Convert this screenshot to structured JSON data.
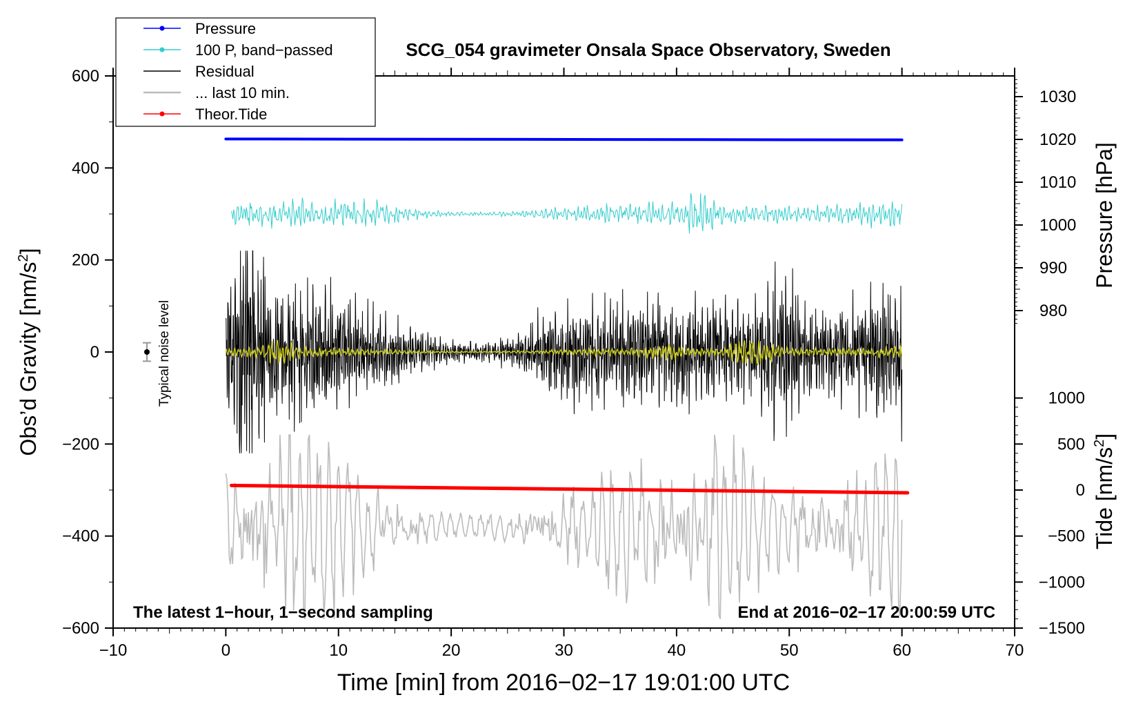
{
  "chart_data": {
    "type": "line",
    "title": "SCG_054 gravimeter Onsala Space Observatory, Sweden",
    "xlabel": "Time [min] from 2016−02−17 19:01:00 UTC",
    "ylabel_main": "Obs’d Gravity [nm/s",
    "ylabel_sup": "2",
    "ylabel_close": "]",
    "ylabel_pressure": "Pressure [hPa]",
    "ylabel_tide": "Tide [nm/s",
    "ylabel_tide_sup": "2",
    "ylabel_tide_close": "]",
    "xlim": [
      -10,
      70
    ],
    "ylim": [
      -600,
      600
    ],
    "x_ticks": [
      "−10",
      "0",
      "10",
      "20",
      "30",
      "40",
      "50",
      "60",
      "70"
    ],
    "x_tick_values": [
      -10,
      0,
      10,
      20,
      30,
      40,
      50,
      60,
      70
    ],
    "y_ticks": [
      "600",
      "400",
      "200",
      "0",
      "−200",
      "−400",
      "−600"
    ],
    "y_tick_values": [
      600,
      400,
      200,
      0,
      -200,
      -400,
      -600
    ],
    "pressure_ticks": [
      "1030",
      "1020",
      "1010",
      "1000",
      "990",
      "980"
    ],
    "pressure_tick_values": [
      1030,
      1020,
      1010,
      1000,
      990,
      980
    ],
    "pressure_mapping": {
      "value_1020": 1020,
      "gravity_at_1020": 462,
      "gravity_per_hpa": 9.3
    },
    "tide_ticks": [
      "1000",
      "500",
      "0",
      "−500",
      "−1000",
      "−1500"
    ],
    "tide_tick_values": [
      1000,
      500,
      0,
      -500,
      -1000,
      -1500
    ],
    "tide_mapping": {
      "value_0": 0,
      "gravity_at_0": -300,
      "gravity_per_unit": 0.2
    },
    "legend": [
      {
        "label": "Pressure",
        "color": "#0000ff",
        "marker": true
      },
      {
        "label": "100 P, band−passed",
        "color": "#33cccc",
        "marker": true
      },
      {
        "label": "Residual",
        "color": "#000000",
        "marker": false
      },
      {
        "label": "... last 10 min.",
        "color": "#bbbbbb",
        "marker": false
      },
      {
        "label": "Theor.Tide",
        "color": "#ff0000",
        "marker": true
      }
    ],
    "annotations": {
      "bottom_left": "The latest 1−hour, 1−second sampling",
      "bottom_right": "End at 2016−02−17 20:00:59 UTC",
      "noise_label": "Typical noise level"
    },
    "noise_bar": {
      "x": -7,
      "y": 0,
      "error": 20
    },
    "series": [
      {
        "name": "Pressure",
        "color": "#0000ff",
        "x_start": 0,
        "x_end": 60,
        "y_start": 463,
        "y_end": 461
      },
      {
        "name": "100 P, band−passed",
        "color": "#33cccc",
        "x_start": 0.5,
        "x_end": 60,
        "center": 300,
        "amplitude_typical": 20,
        "amplitude_max": 50
      },
      {
        "name": "Residual",
        "color": "#000000",
        "x_start": 0,
        "x_end": 60,
        "center": 0,
        "amplitude_typical": 110,
        "amplitude_max": 220
      },
      {
        "name": "Residual (smoothed)",
        "color": "#cccc22",
        "x_start": 0,
        "x_end": 60,
        "center": 0,
        "amplitude_typical": 8,
        "amplitude_max": 25
      },
      {
        "name": "... last 10 min.",
        "color": "#bbbbbb",
        "x_start": 0,
        "x_end": 60,
        "center": -380,
        "amplitude_typical": 120,
        "amplitude_max": 200
      },
      {
        "name": "Theor.Tide",
        "color": "#ff0000",
        "x_start": 0.5,
        "x_end": 60.5,
        "y_start": -290,
        "y_end": -306
      }
    ]
  }
}
